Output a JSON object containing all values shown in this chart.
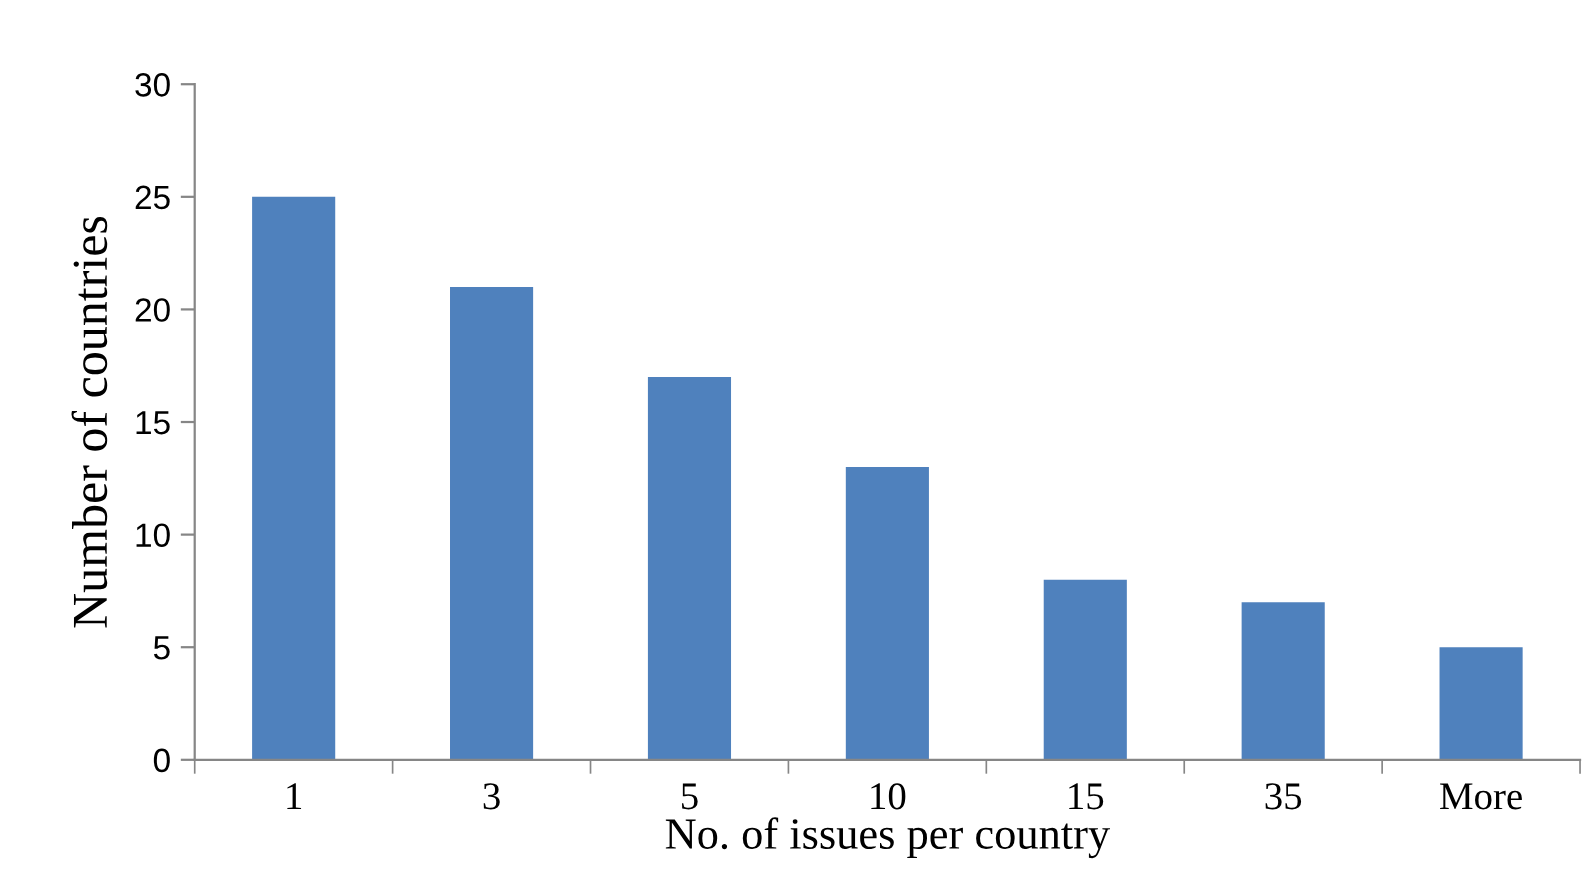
{
  "chart_data": {
    "type": "bar",
    "categories": [
      "1",
      "3",
      "5",
      "10",
      "15",
      "35",
      "More"
    ],
    "values": [
      25,
      21,
      17,
      13,
      8,
      7,
      5
    ],
    "color": "#4f81bd",
    "xlabel": "No. of issues per country",
    "ylabel": "Number of countries",
    "ylim": [
      0,
      30
    ],
    "yticks": [
      0,
      5,
      10,
      15,
      20,
      25,
      30
    ],
    "grid": false,
    "legend": false
  }
}
